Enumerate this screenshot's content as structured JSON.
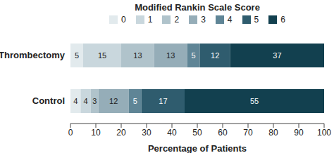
{
  "chart_data": {
    "type": "bar",
    "orientation": "horizontal",
    "stacked": true,
    "data_labels": true,
    "grid": false,
    "legend": "top",
    "title": "Modified Rankin Scale Score",
    "x_label": "Percentage of Patients",
    "categories": [
      "Thrombectomy",
      "Control"
    ],
    "series": [
      {
        "name": "0",
        "color": "#e2eaed",
        "values": [
          5,
          4
        ]
      },
      {
        "name": "1",
        "color": "#c9d7dd",
        "values": [
          15,
          4
        ]
      },
      {
        "name": "2",
        "color": "#b0c3cb",
        "values": [
          13,
          3
        ]
      },
      {
        "name": "3",
        "color": "#95adb8",
        "values": [
          13,
          12
        ]
      },
      {
        "name": "4",
        "color": "#5f8596",
        "values": [
          5,
          5
        ]
      },
      {
        "name": "5",
        "color": "#2f5c6e",
        "values": [
          12,
          17
        ]
      },
      {
        "name": "6",
        "color": "#12404f",
        "values": [
          37,
          55
        ]
      }
    ],
    "xlim": [
      0,
      100
    ],
    "xticks": [
      0,
      10,
      20,
      30,
      40,
      50,
      60,
      70,
      80,
      90,
      100
    ]
  }
}
